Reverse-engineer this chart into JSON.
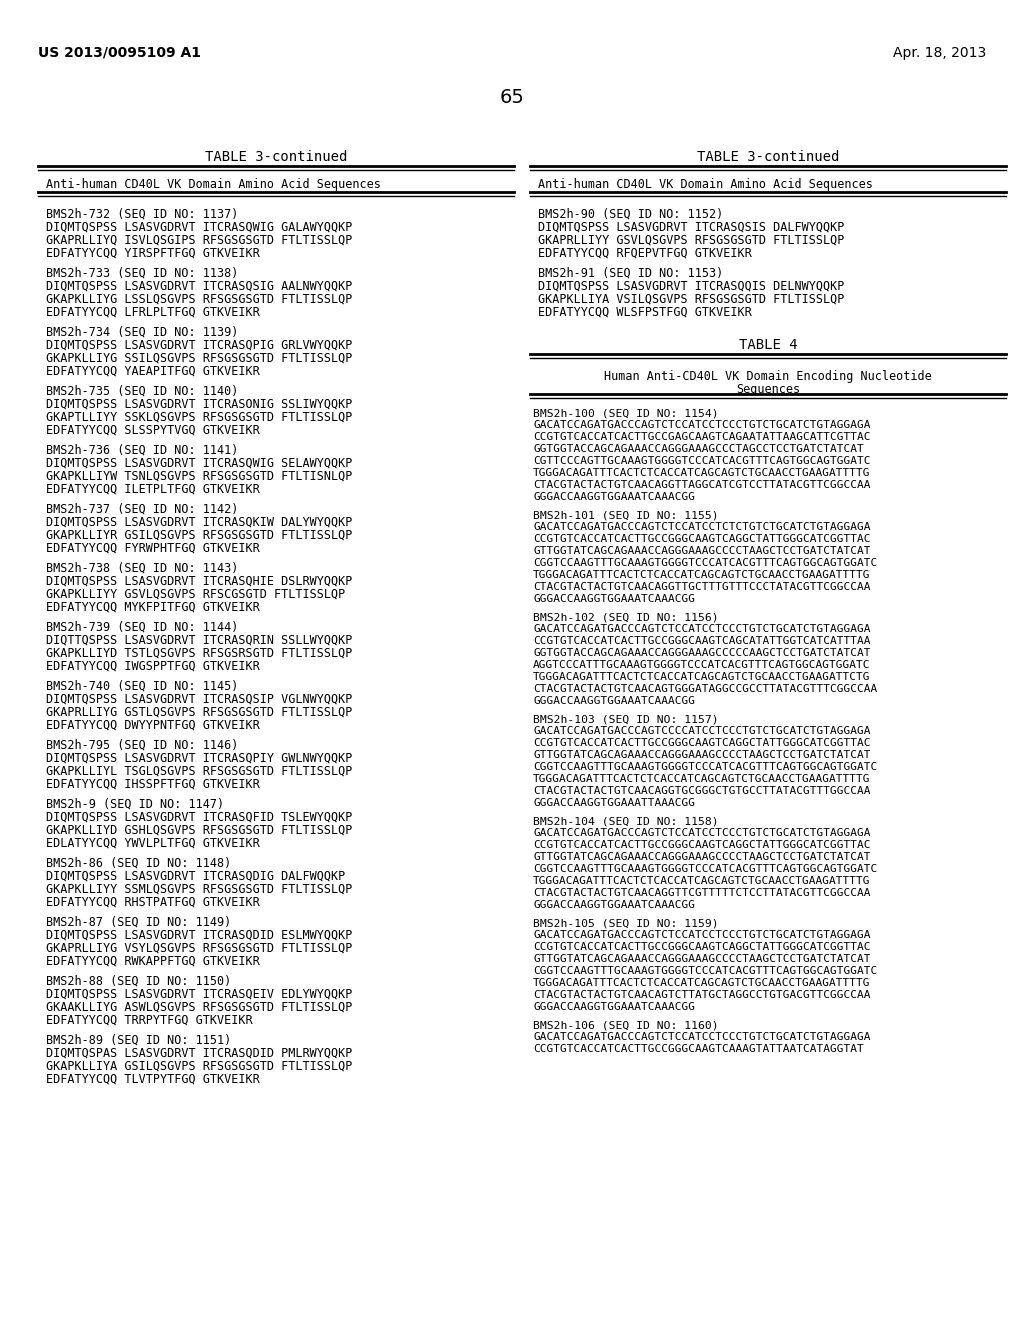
{
  "background_color": "#ffffff",
  "page_header_left": "US 2013/0095109 A1",
  "page_header_right": "Apr. 18, 2013",
  "page_number": "65",
  "left_table_title": "TABLE 3-continued",
  "right_table_title": "TABLE 3-continued",
  "left_table_header": "Anti-human CD40L VK Domain Amino Acid Sequences",
  "right_table_header": "Anti-human CD40L VK Domain Amino Acid Sequences",
  "table4_title": "TABLE 4",
  "table4_header1": "Human Anti-CD40L VK Domain Encoding Nucleotide",
  "table4_header2": "Sequences",
  "left_entries": [
    {
      "id": "BMS2h-732 (SEQ ID NO: 1137)",
      "lines": [
        "DIQMTQSPSS LSASVGDRVT ITCRASQWIG GALAWYQQKP",
        "GKAPRLLIYQ ISVLQSGIPS RFSGSGSGTD FTLTISSLQP",
        "EDFATYYCQQ YIRSPFTFGQ GTKVEIKR"
      ]
    },
    {
      "id": "BMS2h-733 (SEQ ID NO: 1138)",
      "lines": [
        "DIQMTQSPSS LSASVGDRVT ITCRASQSIG AALNWYQQKP",
        "GKAPKLLIYG LSSLQSGVPS RFSGSGSGTD FTLTISSLQP",
        "EDFATYYCQQ LFRLPLTFGQ GTKVEIKR"
      ]
    },
    {
      "id": "BMS2h-734 (SEQ ID NO: 1139)",
      "lines": [
        "DIQMTQSPSS LSASVGDRVT ITCRASQPIG GRLVWYQQKP",
        "GKAPKLLIYG SSILQSGVPS RFSGSGSGTD FTLTISSLQP",
        "EDFATYYCQQ YAEAPITFGQ GTKVEIKR"
      ]
    },
    {
      "id": "BMS2h-735 (SEQ ID NO: 1140)",
      "lines": [
        "DIQMTQSPSS LSASVGDRVT ITCRASONIG SSLIWYQQKP",
        "GKAPTLLIYY SSKLQSGVPS RFSGSGSGTD FTLTISSLQP",
        "EDFATYYCQQ SLSSPYTVGQ GTKVEIKR"
      ]
    },
    {
      "id": "BMS2h-736 (SEQ ID NO: 1141)",
      "lines": [
        "DIQMTQSPSS LSASVGDRVT ITCRASQWIG SELAWYQQKP",
        "GKAPKLLIYW TSNLQSGVPS RFSGSGSGTD FTLTISNLQP",
        "EDFATYYCQQ ILETPLTFGQ GTKVEIKR"
      ]
    },
    {
      "id": "BMS2h-737 (SEQ ID NO: 1142)",
      "lines": [
        "DIQMTQSPSS LSASVGDRVT ITCRASQKIW DALYWYQQKP",
        "GKAPKLLIYR GSILQSGVPS RFSGSGSGTD FTLTISSLQP",
        "EDFATYYCQQ FYRWPHTFGQ GTKVEIKR"
      ]
    },
    {
      "id": "BMS2h-738 (SEQ ID NO: 1143)",
      "lines": [
        "DIQMTQSPSS LSASVGDRVT ITCRASQHIE DSLRWYQQKP",
        "GKAPKLLIYY GSVLQSGVPS RFSCGSGTD FTLTISSLQP",
        "EDFATYYCQQ MYKFPITFGQ GTKVEIKR"
      ]
    },
    {
      "id": "BMS2h-739 (SEQ ID NO: 1144)",
      "lines": [
        "DIQTTQSPSS LSASVGDRVT ITCRASQRIN SSLLWYQQKP",
        "GKAPKLLIYD TSTLQSGVPS RFSGSRSGTD FTLTISSLQP",
        "EDFATYYCQQ IWGSPPTFGQ GTKVEIKR"
      ]
    },
    {
      "id": "BMS2h-740 (SEQ ID NO: 1145)",
      "lines": [
        "DIQMTQSPSS LSASVGDRVT ITCRASQSIP VGLNWYQQKP",
        "GKAPRLLIYG GSTLQSGVPS RFSGSGSGTD FTLTISSLQP",
        "EDFATYYCQQ DWYYPNTFGQ GTKVEIKR"
      ]
    },
    {
      "id": "BMS2h-795 (SEQ ID NO: 1146)",
      "lines": [
        "DIQMTQSPSS LSASVGDRVT ITCRASQPIY GWLNWYQQKP",
        "GKAPKLLIYL TSGLQSGVPS RFSGSGSGTD FTLTISSLQP",
        "EDFATYYCQQ IHSSPFTFGQ GTKVEIKR"
      ]
    },
    {
      "id": "BMS2h-9 (SEQ ID NO: 1147)",
      "lines": [
        "DIQMTQSPSS LSASVGDRVT ITCRASQFID TSLEWYQQKP",
        "GKAPKLLIYD GSHLQSGVPS RFSGSGSGTD FTLTISSLQP",
        "EDLATYYCQQ YWVLPLTFGQ GTKVEIKR"
      ]
    },
    {
      "id": "BMS2h-86 (SEQ ID NO: 1148)",
      "lines": [
        "DIQMTQSPSS LSASVGDRVT ITCRASQDIG DALFWQQKP",
        "GKAPKLLIYY SSMLQSGVPS RFSGSGSGTD FTLTISSLQP",
        "EDFATYYCQQ RHSTPATFGQ GTKVEIKR"
      ]
    },
    {
      "id": "BMS2h-87 (SEQ ID NO: 1149)",
      "lines": [
        "DIQMTQSPSS LSASVGDRVT ITCRASQDID ESLMWYQQKP",
        "GKAPRLLIYG VSYLQSGVPS RFSGSGSGTD FTLTISSLQP",
        "EDFATYYCQQ RWKAPPFTGQ GTKVEIKR"
      ]
    },
    {
      "id": "BMS2h-88 (SEQ ID NO: 1150)",
      "lines": [
        "DIQMTQSPSS LSASVGDRVT ITCRASQEIV EDLYWYQQKP",
        "GKAAKLLIYG ASWLQSGVPS RFSGSGSGTD FTLTISSLQP",
        "EDFATYYCQQ TRRPYTFGQ GTKVEIKR"
      ]
    },
    {
      "id": "BMS2h-89 (SEQ ID NO: 1151)",
      "lines": [
        "DIQMTQSPAS LSASVGDRVT ITCRASQDID PMLRWYQQKP",
        "GKAPKLLIYA GSILQSGVPS RFSGSGSGTD FTLTISSLQP",
        "EDFATYYCQQ TLVTPYTFGQ GTKVEIKR"
      ]
    }
  ],
  "right_entries_table3": [
    {
      "id": "BMS2h-90 (SEQ ID NO: 1152)",
      "lines": [
        "DIQMTQSPSS LSASVGDRVT ITCRASQSIS DALFWYQQKP",
        "GKAPRLLIYY GSVLQSGVPS RFSGSGSGTD FTLTISSLQP",
        "EDFATYYCQQ RFQEPVTFGQ GTKVEIKR"
      ]
    },
    {
      "id": "BMS2h-91 (SEQ ID NO: 1153)",
      "lines": [
        "DIQMTQSPSS LSASVGDRVT ITCRASQQIS DELNWYQQKP",
        "GKAPKLLIYA VSILQSGVPS RFSGSGSGTD FTLTISSLQP",
        "EDFATYYCQQ WLSFPSTFGQ GTKVEIKR"
      ]
    }
  ],
  "right_entries_table4": [
    {
      "id": "BMS2h-100 (SEQ ID NO: 1154)",
      "lines": [
        "GACATCCAGATGACCCAGTCTCCATCCTCCCTGTCTGCATCTGTAGGAGA",
        "CCGTGTCACCATCACTTGCCGAGCAAGTCAGAATATTAAGCATTCGTTAC",
        "GGTGGTACCAGCAGAAACCAGGGAAAGCCCTAGCCTCCTGATCTATCAT",
        "CGTTCCCAGTTGCAAAGTGGGGTCCCATCACGTTTCAGTGGCAGTGGATC",
        "TGGGACAGATTTCACTCTCACCATCAGCAGTCTGCAACCTGAAGATTTTG",
        "CTACGTACTACTGTCAACAGGTTAGGCATCGTCCTTATACGTTCGGCCAA",
        "GGGACCAAGGTGGAAATCAAACGG"
      ]
    },
    {
      "id": "BMS2h-101 (SEQ ID NO: 1155)",
      "lines": [
        "GACATCCAGATGACCCAGTCTCCATCCTCTCTGTCTGCATCTGTAGGAGA",
        "CCGTGTCACCATCACTTGCCGGGCAAGTCAGGCTATTGGGCATCGGTTAC",
        "GTTGGTATCAGCAGAAACCAGGGAAAGCCCCTAAGCTCCTGATCTATCAT",
        "CGGTCCAAGTTTGCAAAGTGGGGTCCCATCACGTTTCAGTGGCAGTGGATC",
        "TGGGACAGATTTCACTCTCACCATCAGCAGTCTGCAACCTGAAGATTTTG",
        "CTACGTACTACTGTCAACAGGTTGCTTTGTTTCCCTATACGTTCGGCCAA",
        "GGGACCAAGGTGGAAATCAAACGG"
      ]
    },
    {
      "id": "BMS2h-102 (SEQ ID NO: 1156)",
      "lines": [
        "GACATCCAGATGACCCAGTCTCCATCCTCCCTGTCTGCATCTGTAGGAGA",
        "CCGTGTCACCATCACTTGCCGGGCAAGTCAGCATATTGGTCATCATTTAA",
        "GGTGGTACCAGCAGAAACCAGGGAAAGCCCCCAAGCTCCTGATCTATCAT",
        "AGGTCCCATTTGCAAAGTGGGGTCCCATCACGTTTCAGTGGCAGTGGATC",
        "TGGGACAGATTTCACTCTCACCATCAGCAGTCTGCAACCTGAAGATTCTG",
        "CTACGTACTACTGTCAACAGTGGGATAGGCCGCCTTATACGTTTCGGCCAA",
        "GGGACCAAGGTGGAAATCAAACGG"
      ]
    },
    {
      "id": "BMS2h-103 (SEQ ID NO: 1157)",
      "lines": [
        "GACATCCAGATGACCCAGTCCCCATCCTCCCTGTCTGCATCTGTAGGAGA",
        "CCGTGTCACCATCACTTGCCGGGCAAGTCAGGCTATTGGGCATCGGTTAC",
        "GTTGGTATCAGCAGAAACCAGGGAAAGCCCCTAAGCTCCTGATCTATCAT",
        "CGGTCCAAGTTTGCAAAGTGGGGTCCCATCACGTTTCAGTGGCAGTGGATC",
        "TGGGACAGATTTCACTCTCACCATCAGCAGTCTGCAACCTGAAGATTTTG",
        "CTACGTACTACTGTCAACAGGTGCGGGCTGTGCCTTATACGTTTGGCCAA",
        "GGGACCAAGGTGGAAATTAAACGG"
      ]
    },
    {
      "id": "BMS2h-104 (SEQ ID NO: 1158)",
      "lines": [
        "GACATCCAGATGACCCAGTCTCCATCCTCCCTGTCTGCATCTGTAGGAGA",
        "CCGTGTCACCATCACTTGCCGGGCAAGTCAGGCTATTGGGCATCGGTTAC",
        "GTTGGTATCAGCAGAAACCAGGGAAAGCCCCTAAGCTCCTGATCTATCAT",
        "CGGTCCAAGTTTGCAAAGTGGGGTCCCATCACGTTTCAGTGGCAGTGGATC",
        "TGGGACAGATTTCACTCTCACCATCAGCAGTCTGCAACCTGAAGATTTTG",
        "CTACGTACTACTGTCAACAGGTTCGTTTTTCTCCTTATACGTTCGGCCAA",
        "GGGACCAAGGTGGAAATCAAACGG"
      ]
    },
    {
      "id": "BMS2h-105 (SEQ ID NO: 1159)",
      "lines": [
        "GACATCCAGATGACCCAGTCTCCATCCTCCCTGTCTGCATCTGTAGGAGA",
        "CCGTGTCACCATCACTTGCCGGGCAAGTCAGGCTATTGGGCATCGGTTAC",
        "GTTGGTATCAGCAGAAACCAGGGAAAGCCCCTAAGCTCCTGATCTATCAT",
        "CGGTCCAAGTTTGCAAAGTGGGGTCCCATCACGTTTCAGTGGCAGTGGATC",
        "TGGGACAGATTTCACTCTCACCATCAGCAGTCTGCAACCTGAAGATTTTG",
        "CTACGTACTACTGTCAACAGTCTTATGCTAGGCCTGTGACGTTCGGCCAA",
        "GGGACCAAGGTGGAAATCAAACGG"
      ]
    },
    {
      "id": "BMS2h-106 (SEQ ID NO: 1160)",
      "lines": [
        "GACATCCAGATGACCCAGTCTCCATCCTCCCTGTCTGCATCTGTAGGAGA",
        "CCGTGTCACCATCACTTGCCGGGCAAGTCAAAGTATTAATCATAGGTAT"
      ]
    }
  ]
}
